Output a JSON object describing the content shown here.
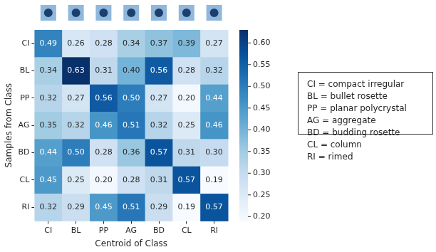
{
  "chart_data": {
    "type": "heatmap",
    "x_label": "Centroid of Class",
    "y_label": "Samples from Class",
    "columns": [
      "CI",
      "BL",
      "PP",
      "AG",
      "BD",
      "CL",
      "RI"
    ],
    "rows": [
      "CI",
      "BL",
      "PP",
      "AG",
      "BD",
      "CL",
      "RI"
    ],
    "cells": [
      [
        0.49,
        0.26,
        0.28,
        0.34,
        0.37,
        0.39,
        0.27
      ],
      [
        0.34,
        0.63,
        0.31,
        0.4,
        0.56,
        0.28,
        0.32
      ],
      [
        0.32,
        0.27,
        0.56,
        0.5,
        0.27,
        0.2,
        0.44
      ],
      [
        0.35,
        0.32,
        0.46,
        0.51,
        0.32,
        0.25,
        0.46
      ],
      [
        0.44,
        0.5,
        0.28,
        0.36,
        0.57,
        0.31,
        0.3
      ],
      [
        0.45,
        0.25,
        0.2,
        0.28,
        0.31,
        0.57,
        0.19
      ],
      [
        0.32,
        0.29,
        0.45,
        0.51,
        0.29,
        0.19,
        0.57
      ]
    ],
    "cell_labels": [
      [
        "0.49",
        "0.26",
        "0.28",
        "0.34",
        "0.37",
        "0.39",
        "0.27"
      ],
      [
        "0.34",
        "0.63",
        "0.31",
        "0.40",
        "0.56",
        "0.28",
        "0.32"
      ],
      [
        "0.32",
        "0.27",
        "0.56",
        "0.50",
        "0.27",
        "0.20",
        "0.44"
      ],
      [
        "0.35",
        "0.32",
        "0.46",
        "0.51",
        "0.32",
        "0.25",
        "0.46"
      ],
      [
        "0.44",
        "0.50",
        "0.28",
        "0.36",
        "0.57",
        "0.31",
        "0.30"
      ],
      [
        "0.45",
        "0.25",
        "0.20",
        "0.28",
        "0.31",
        "0.57",
        "0.19"
      ],
      [
        "0.32",
        "0.29",
        "0.45",
        "0.51",
        "0.29",
        "0.19",
        "0.57"
      ]
    ],
    "data_labels": true,
    "colorbar": {
      "range": [
        0.19,
        0.63
      ],
      "ticks": [
        {
          "value": 0.2,
          "label": "0.20"
        },
        0.25,
        {
          "value": 0.3,
          "label": "0.30"
        },
        0.35,
        {
          "value": 0.4,
          "label": "0.40"
        },
        0.45,
        {
          "value": 0.5,
          "label": "0.50"
        },
        0.55,
        {
          "value": 0.6,
          "label": "0.60"
        }
      ]
    },
    "key": [
      "CI = compact irregular",
      "BL = bullet rosette",
      "PP = planar polycrystal",
      "AG = aggregate",
      "BD = budding rosette",
      "CL = column",
      "RI = rimed"
    ]
  }
}
